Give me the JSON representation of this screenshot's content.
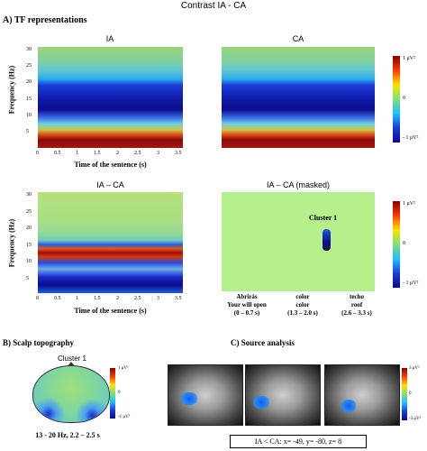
{
  "figure_title": "Contrast IA - CA",
  "section_a": {
    "heading": "A) TF representations",
    "panels": [
      {
        "title": "IA"
      },
      {
        "title": "CA"
      },
      {
        "title": "IA – CA"
      },
      {
        "title": "IA – CA (masked)",
        "cluster_label": "Cluster 1"
      }
    ],
    "y_label": "Frequency (Hz)",
    "x_label": "Time of the sentence (s)",
    "y_ticks": [
      "30",
      "25",
      "20",
      "15",
      "10",
      "5"
    ],
    "x_ticks": [
      "0",
      "0.5",
      "1",
      "1.5",
      "2",
      "2.5",
      "3",
      "3.5"
    ],
    "colorbar": {
      "top": "1 μV²",
      "mid": "0",
      "bottom": "- 1 μV²"
    },
    "words": [
      {
        "es": "Abrirás",
        "en": "Your will open",
        "range": "(0 – 0.7 s)"
      },
      {
        "es": "color",
        "en": "color",
        "range": "(1.3 – 2.0 s)"
      },
      {
        "es": "techo",
        "en": "roof",
        "range": "(2.6 – 3.3 s)"
      }
    ]
  },
  "section_b": {
    "heading": "B) Scalp topography",
    "title": "Cluster 1",
    "colorbar": {
      "top": "1 μV²",
      "mid": "0",
      "bottom": "-1 μV²"
    },
    "caption": "13 - 20 Hz, 2.2 – 2.5 s"
  },
  "section_c": {
    "heading": "C) Source analysis",
    "colorbar": {
      "top": "3 μV²",
      "mid": "0",
      "bottom": "-3 μV²"
    },
    "caption": "IA < CA: x= -49, y= -80, z= 8"
  },
  "colors": {
    "heat_low": "#0a0a8c",
    "heat_mid": "#7fe07a",
    "heat_high": "#8b0000",
    "masked_bg": "#b6f08c"
  }
}
